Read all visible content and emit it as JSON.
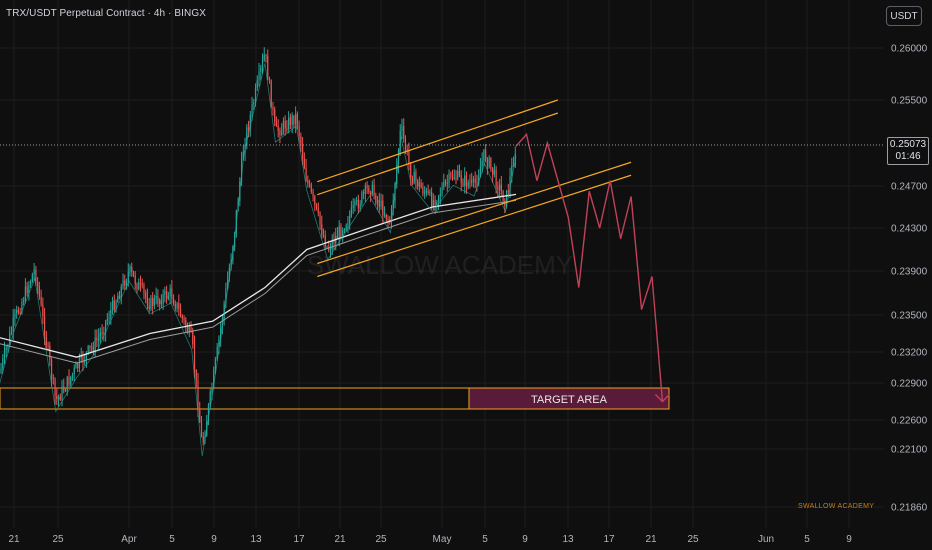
{
  "header": {
    "symbol_title": "TRX/USDT Perpetual Contract · 4h · BINGX",
    "currency_button": "USDT"
  },
  "price_axis": {
    "ticks": [
      "0.26000",
      "0.25500",
      "0.24700",
      "0.24300",
      "0.23900",
      "0.23500",
      "0.23200",
      "0.22900",
      "0.22600",
      "0.22100",
      "0.21860"
    ],
    "current_price": "0.25073",
    "countdown": "01:46"
  },
  "time_axis": {
    "ticks": [
      "21",
      "25",
      "Apr",
      "5",
      "9",
      "13",
      "17",
      "21",
      "25",
      "May",
      "5",
      "9",
      "13",
      "17",
      "21",
      "25",
      "Jun",
      "5",
      "9"
    ]
  },
  "annotations": {
    "target_label": "TARGET AREA",
    "center_watermark": "SWALLOW ACADEMY",
    "corner_watermark": "SWALLOW ACADEMY"
  },
  "colors": {
    "background": "#0f0f0f",
    "up_candle": "#26a69a",
    "down_candle": "#ef5350",
    "channel": "#f5a623",
    "projection": "#c2415a",
    "target_fill": "#5a1a3a"
  },
  "chart_data": {
    "type": "candlestick",
    "symbol": "TRX/USDT Perpetual Contract",
    "timeframe": "4h",
    "exchange": "BINGX",
    "y_range": [
      0.2186,
      0.2625
    ],
    "x_ticks": [
      "21",
      "25",
      "Apr",
      "5",
      "9",
      "13",
      "17",
      "21",
      "25",
      "May",
      "5",
      "9",
      "13",
      "17",
      "21",
      "25",
      "Jun",
      "5",
      "9"
    ],
    "current_price": 0.25073,
    "price_path": [
      {
        "x": "Mar 19",
        "y": 0.2278
      },
      {
        "x": "Mar 21",
        "y": 0.2345
      },
      {
        "x": "Mar 23",
        "y": 0.2392
      },
      {
        "x": "Mar 25",
        "y": 0.2275
      },
      {
        "x": "Mar 27",
        "y": 0.2305
      },
      {
        "x": "Mar 29",
        "y": 0.233
      },
      {
        "x": "Apr 1",
        "y": 0.239
      },
      {
        "x": "Apr 3",
        "y": 0.236
      },
      {
        "x": "Apr 5",
        "y": 0.237
      },
      {
        "x": "Apr 7",
        "y": 0.233
      },
      {
        "x": "Apr 8",
        "y": 0.2215
      },
      {
        "x": "Apr 9",
        "y": 0.229
      },
      {
        "x": "Apr 11",
        "y": 0.242
      },
      {
        "x": "Apr 12",
        "y": 0.251
      },
      {
        "x": "Apr 14",
        "y": 0.2595
      },
      {
        "x": "Apr 15",
        "y": 0.252
      },
      {
        "x": "Apr 17",
        "y": 0.2535
      },
      {
        "x": "Apr 18",
        "y": 0.2475
      },
      {
        "x": "Apr 20",
        "y": 0.241
      },
      {
        "x": "Apr 22",
        "y": 0.244
      },
      {
        "x": "Apr 24",
        "y": 0.247
      },
      {
        "x": "Apr 26",
        "y": 0.2435
      },
      {
        "x": "Apr 27",
        "y": 0.2525
      },
      {
        "x": "Apr 28",
        "y": 0.248
      },
      {
        "x": "Apr 30",
        "y": 0.2455
      },
      {
        "x": "May 2",
        "y": 0.248
      },
      {
        "x": "May 4",
        "y": 0.247
      },
      {
        "x": "May 5",
        "y": 0.25
      },
      {
        "x": "May 7",
        "y": 0.2455
      },
      {
        "x": "May 8",
        "y": 0.2507
      }
    ],
    "moving_averages": [
      {
        "x": "Mar 19",
        "y": 0.2333
      },
      {
        "x": "Mar 27",
        "y": 0.2315
      },
      {
        "x": "Apr 3",
        "y": 0.2335
      },
      {
        "x": "Apr 9",
        "y": 0.2345
      },
      {
        "x": "Apr 14",
        "y": 0.2375
      },
      {
        "x": "Apr 18",
        "y": 0.241
      },
      {
        "x": "Apr 24",
        "y": 0.243
      },
      {
        "x": "Apr 30",
        "y": 0.245
      },
      {
        "x": "May 8",
        "y": 0.2462
      }
    ],
    "ascending_channel": {
      "upper": [
        {
          "x": "Apr 19",
          "y": 0.2474
        },
        {
          "x": "May 12",
          "y": 0.255
        }
      ],
      "lower": [
        {
          "x": "Apr 19",
          "y": 0.2385
        },
        {
          "x": "May 19",
          "y": 0.248
        }
      ]
    },
    "projection": [
      {
        "x": "May 8",
        "y": 0.2507
      },
      {
        "x": "May 9",
        "y": 0.2518
      },
      {
        "x": "May 10",
        "y": 0.2475
      },
      {
        "x": "May 11",
        "y": 0.251
      },
      {
        "x": "May 13",
        "y": 0.244
      },
      {
        "x": "May 14",
        "y": 0.2375
      },
      {
        "x": "May 15",
        "y": 0.2465
      },
      {
        "x": "May 16",
        "y": 0.243
      },
      {
        "x": "May 17",
        "y": 0.2475
      },
      {
        "x": "May 18",
        "y": 0.242
      },
      {
        "x": "May 19",
        "y": 0.246
      },
      {
        "x": "May 20",
        "y": 0.2355
      },
      {
        "x": "May 21",
        "y": 0.2385
      },
      {
        "x": "May 22",
        "y": 0.2275
      }
    ],
    "target_area": {
      "label": "TARGET AREA",
      "y_low": 0.2266,
      "y_high": 0.2287
    }
  }
}
